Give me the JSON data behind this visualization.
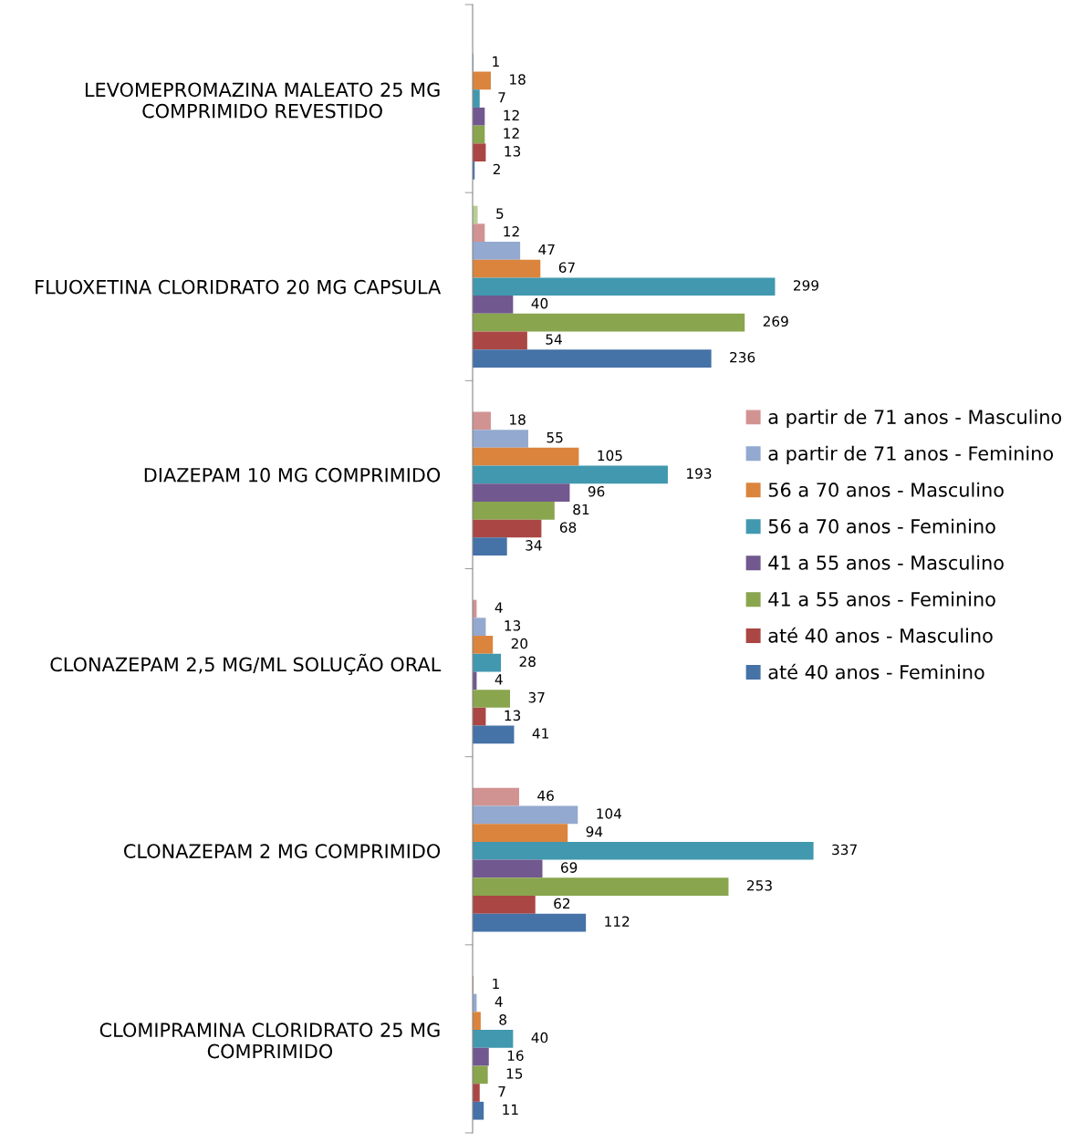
{
  "chart_data": {
    "type": "bar",
    "orientation": "horizontal",
    "categories": [
      "LEVOMEPROMAZINA MALEATO 25 MG\nCOMPRIMIDO REVESTIDO",
      "FLUOXETINA CLORIDRATO 20 MG CAPSULA",
      "DIAZEPAM 10 MG COMPRIMIDO",
      "CLONAZEPAM 2,5 MG/ML SOLUÇÃO ORAL",
      "CLONAZEPAM 2 MG COMPRIMIDO",
      "CLOMIPRAMINA CLORIDRATO 25 MG\nCOMPRIMIDO"
    ],
    "series": [
      {
        "color": "#b9cd96",
        "values": [
          null,
          5,
          null,
          null,
          null,
          null
        ]
      },
      {
        "name": "a partir de 71 anos - Masculino",
        "color": "#d19392",
        "values": [
          null,
          12,
          18,
          4,
          46,
          1
        ]
      },
      {
        "name": "a partir de 71 anos - Feminino",
        "color": "#93a9cf",
        "values": [
          1,
          47,
          55,
          13,
          104,
          4
        ]
      },
      {
        "name": "56 a 70 anos - Masculino",
        "color": "#db843d",
        "values": [
          18,
          67,
          105,
          20,
          94,
          8
        ]
      },
      {
        "name": "56 a 70 anos - Feminino",
        "color": "#4198af",
        "values": [
          7,
          299,
          193,
          28,
          337,
          40
        ]
      },
      {
        "name": "41 a 55 anos - Masculino",
        "color": "#71588f",
        "values": [
          12,
          40,
          96,
          4,
          69,
          16
        ]
      },
      {
        "name": "41 a 55 anos - Feminino",
        "color": "#89a54e",
        "values": [
          12,
          269,
          81,
          37,
          253,
          15
        ]
      },
      {
        "name": "até 40 anos - Masculino",
        "color": "#aa4643",
        "values": [
          13,
          54,
          68,
          13,
          62,
          7
        ]
      },
      {
        "name": "até 40 anos - Feminino",
        "color": "#4572a7",
        "values": [
          2,
          236,
          34,
          41,
          112,
          11
        ]
      }
    ],
    "tick_labels": "y",
    "data_labels": true,
    "grid": false,
    "legend": "right"
  }
}
